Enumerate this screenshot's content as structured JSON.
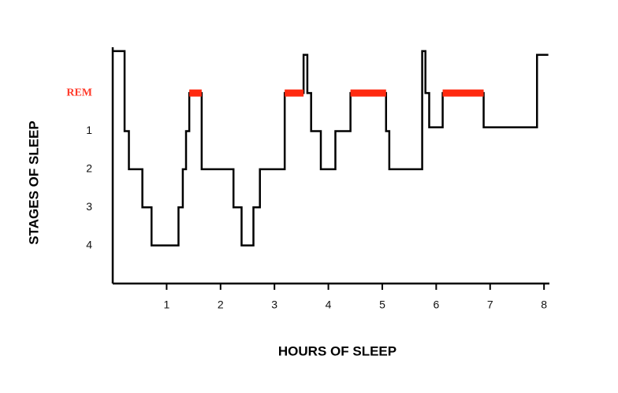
{
  "chart_data": {
    "type": "line",
    "x_label": "HOURS OF SLEEP",
    "y_label": "STAGES OF SLEEP",
    "xlim": [
      0,
      8.1
    ],
    "ylim": [
      5,
      -1.2
    ],
    "xticks": [
      1,
      2,
      3,
      4,
      5,
      6,
      7,
      8
    ],
    "yticks": [
      {
        "value": 0,
        "label": "REM",
        "color": "#ff3a2a"
      },
      1,
      2,
      3,
      4
    ],
    "grid": false,
    "series": [
      {
        "color": "#000000",
        "x": [
          0,
          0.22,
          0.22,
          0.3,
          0.3,
          0.55,
          0.55,
          0.72,
          0.72,
          1.22,
          1.22,
          1.3,
          1.3,
          1.36,
          1.36,
          1.42,
          1.42,
          1.65,
          1.65,
          2.24,
          2.24,
          2.39,
          2.39,
          2.61,
          2.61,
          2.73,
          2.73,
          3.19,
          3.19,
          3.54,
          3.54,
          3.61,
          3.61,
          3.68,
          3.68,
          3.86,
          3.86,
          4.13,
          4.13,
          4.41,
          4.41,
          5.07,
          5.07,
          5.13,
          5.13,
          5.74,
          5.74,
          5.8,
          5.8,
          5.87,
          5.87,
          6.12,
          6.12,
          6.88,
          6.88,
          7.87,
          7.87,
          8.08
        ],
        "values": [
          -1.1,
          -1.1,
          1,
          1,
          2,
          2,
          3,
          3,
          4,
          4,
          3,
          3,
          2,
          2,
          1,
          1,
          0,
          0,
          2,
          2,
          3,
          3,
          4,
          4,
          3,
          3,
          2,
          2,
          0,
          0,
          -1,
          -1,
          0,
          0,
          1,
          1,
          2,
          2,
          1,
          1,
          0,
          0,
          1,
          1,
          2,
          2,
          -1.1,
          -1.1,
          0,
          0,
          0.9,
          0.9,
          0,
          0,
          0.9,
          0.9,
          -1,
          -1
        ]
      },
      {
        "color": "#ff2a10",
        "x": [
          1.42,
          1.65,
          null,
          3.19,
          3.54,
          null,
          4.41,
          5.07,
          null,
          6.12,
          6.88
        ],
        "values": [
          0,
          0,
          null,
          0,
          0,
          null,
          0,
          0,
          null,
          0,
          0
        ]
      }
    ]
  }
}
